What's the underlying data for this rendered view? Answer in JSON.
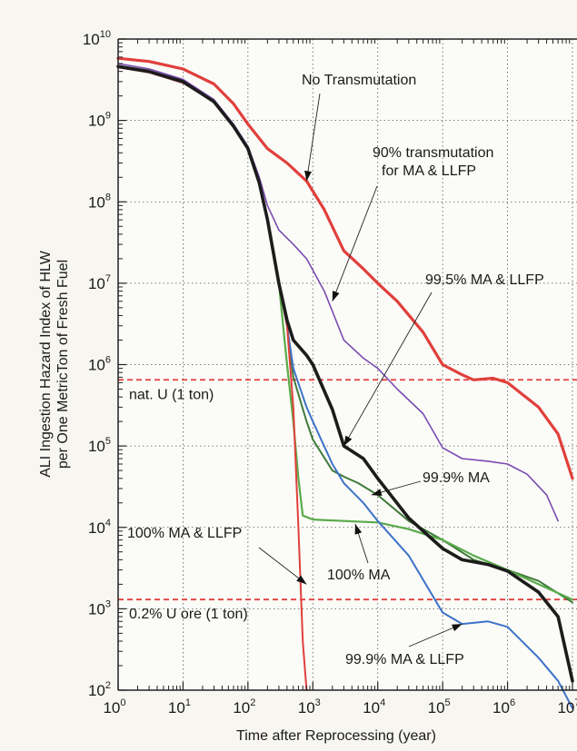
{
  "chart_data": {
    "type": "line",
    "xscale": "log",
    "yscale": "log",
    "xlim": [
      1,
      10000000
    ],
    "ylim": [
      100,
      10000000000
    ],
    "xlabel": "Time after Reprocessing  (year)",
    "ylabel": "ALI Ingestion Hazard Index of HLW per One MetricTon of Fresh Fuel",
    "ylabel_lines": [
      "ALI Ingestion Hazard Index of HLW",
      "per One MetricTon of Fresh Fuel"
    ],
    "x_ticks": [
      {
        "base": "10",
        "exp": "0"
      },
      {
        "base": "10",
        "exp": "1"
      },
      {
        "base": "10",
        "exp": "2"
      },
      {
        "base": "10",
        "exp": "3"
      },
      {
        "base": "10",
        "exp": "4"
      },
      {
        "base": "10",
        "exp": "5"
      },
      {
        "base": "10",
        "exp": "6"
      },
      {
        "base": "10",
        "exp": "7"
      }
    ],
    "y_ticks": [
      {
        "base": "10",
        "exp": "2"
      },
      {
        "base": "10",
        "exp": "3"
      },
      {
        "base": "10",
        "exp": "4"
      },
      {
        "base": "10",
        "exp": "5"
      },
      {
        "base": "10",
        "exp": "6"
      },
      {
        "base": "10",
        "exp": "7"
      },
      {
        "base": "10",
        "exp": "8"
      },
      {
        "base": "10",
        "exp": "9"
      },
      {
        "base": "10",
        "exp": "10"
      }
    ],
    "grid": true,
    "series": [
      {
        "name": "No Transmutation",
        "color": "#e0403c",
        "width": 3.2,
        "x": [
          1,
          3,
          10,
          30,
          60,
          100,
          200,
          400,
          800,
          1500,
          3000,
          6000,
          10000,
          20000,
          50000,
          100000,
          200000,
          300000,
          600000,
          1000000,
          3000000,
          6000000,
          10000000
        ],
        "y": [
          5800000000,
          5300000000,
          4300000000,
          2800000000,
          1600000000,
          900000000,
          450000000,
          300000000,
          180000000,
          80000000,
          25000000,
          15000000,
          10000000,
          6000000,
          2500000,
          1000000,
          750000,
          650000,
          680000,
          600000,
          300000,
          140000,
          40000
        ]
      },
      {
        "name": "90% transmutation for MA & LLFP",
        "color": "#7a4bb0",
        "width": 1.6,
        "x": [
          1,
          3,
          10,
          30,
          60,
          100,
          150,
          200,
          300,
          500,
          800,
          1500,
          3000,
          6000,
          10000,
          20000,
          50000,
          100000,
          200000,
          500000,
          1000000,
          2000000,
          4000000,
          6000000
        ],
        "y": [
          5000000000,
          4300000000,
          3200000000,
          1800000000,
          900000000,
          480000000,
          200000000,
          90000000,
          45000000,
          30000000,
          20000000,
          8000000,
          2000000,
          1200000,
          900000,
          500000,
          250000,
          95000,
          70000,
          65000,
          60000,
          45000,
          25000,
          12000
        ]
      },
      {
        "name": "99.5% MA & LLFP",
        "color": "#1c1c1c",
        "width": 3.6,
        "x": [
          1,
          3,
          10,
          30,
          60,
          100,
          150,
          200,
          300,
          400,
          500,
          800,
          1000,
          2000,
          3000,
          6000,
          10000,
          30000,
          100000,
          200000,
          500000,
          1000000,
          3000000,
          6000000,
          10000000
        ],
        "y": [
          4600000000,
          4000000000,
          3000000000,
          1700000000,
          850000000,
          450000000,
          170000000,
          60000000,
          10000000,
          3500000,
          2000000,
          1300000,
          1000000,
          280000,
          100000,
          70000,
          40000,
          13000,
          5500,
          4000,
          3500,
          2900,
          1600,
          800,
          130
        ]
      },
      {
        "name": "99.9% MA & LLFP",
        "color": "#3d72c8",
        "width": 2.0,
        "x": [
          1,
          3,
          10,
          30,
          60,
          100,
          150,
          200,
          300,
          400,
          500,
          800,
          1000,
          2000,
          3000,
          6000,
          10000,
          30000,
          100000,
          200000,
          500000,
          1000000,
          3000000,
          6000000,
          10000000
        ],
        "y": [
          4500000000,
          3900000000,
          2900000000,
          1700000000,
          850000000,
          450000000,
          170000000,
          60000000,
          10000000,
          3000000,
          900000,
          300000,
          200000,
          60000,
          35000,
          20000,
          12000,
          4500,
          900,
          650,
          700,
          600,
          250,
          130,
          60
        ]
      },
      {
        "name": "99.9% MA",
        "color": "#3e7a3a",
        "width": 2.0,
        "x": [
          1,
          3,
          10,
          30,
          60,
          100,
          150,
          200,
          300,
          400,
          500,
          800,
          1000,
          2000,
          3000,
          5000,
          10000,
          30000,
          100000,
          300000,
          1000000,
          3000000,
          10000000
        ],
        "y": [
          4500000000,
          3900000000,
          2900000000,
          1700000000,
          850000000,
          450000000,
          170000000,
          60000000,
          10000000,
          3000000,
          700000,
          200000,
          120000,
          50000,
          42000,
          35000,
          25000,
          12000,
          7000,
          4000,
          3000,
          2200,
          1200
        ]
      },
      {
        "name": "100% MA",
        "color": "#5aaa4a",
        "width": 2.2,
        "x": [
          1,
          3,
          10,
          30,
          60,
          100,
          150,
          200,
          300,
          400,
          500,
          600,
          700,
          1000,
          3000,
          10000,
          30000,
          100000,
          300000,
          1000000,
          3000000,
          10000000
        ],
        "y": [
          4500000000,
          3900000000,
          2900000000,
          1700000000,
          850000000,
          450000000,
          170000000,
          60000000,
          10000000,
          1000000,
          200000,
          40000,
          14000,
          12500,
          12000,
          11500,
          9500,
          7000,
          4500,
          3000,
          2000,
          1300
        ]
      },
      {
        "name": "100% MA & LLFP",
        "color": "#e0403c",
        "width": 2.0,
        "x": [
          1,
          3,
          10,
          30,
          60,
          100,
          150,
          200,
          300,
          400,
          500,
          600,
          700,
          800
        ],
        "y": [
          4500000000,
          3900000000,
          2900000000,
          1700000000,
          850000000,
          450000000,
          170000000,
          60000000,
          10000000,
          3000000,
          300000,
          10000,
          400,
          100
        ]
      }
    ],
    "reference_lines": [
      {
        "label": "nat. U (1 ton)",
        "y": 650000,
        "color": "#e0403c"
      },
      {
        "label": "0.2% U ore (1 ton)",
        "y": 1300,
        "color": "#e0403c"
      }
    ],
    "annotations": [
      {
        "lines": [
          "No Transmutation"
        ],
        "target_x": 800,
        "target_y": 180000000
      },
      {
        "lines": [
          "90% transmutation",
          "for MA & LLFP"
        ],
        "target_x": 2000,
        "target_y": 6000000
      },
      {
        "lines": [
          "99.5% MA & LLFP"
        ],
        "target_x": 3000,
        "target_y": 100000
      },
      {
        "lines": [
          "99.9% MA"
        ],
        "target_x": 8000,
        "target_y": 25000
      },
      {
        "lines": [
          "100% MA & LLFP"
        ],
        "target_x": 800,
        "target_y": 2000
      },
      {
        "lines": [
          "100% MA"
        ],
        "target_x": 4500,
        "target_y": 11000
      },
      {
        "lines": [
          "99.9% MA & LLFP"
        ],
        "target_x": 200000,
        "target_y": 650
      }
    ]
  }
}
